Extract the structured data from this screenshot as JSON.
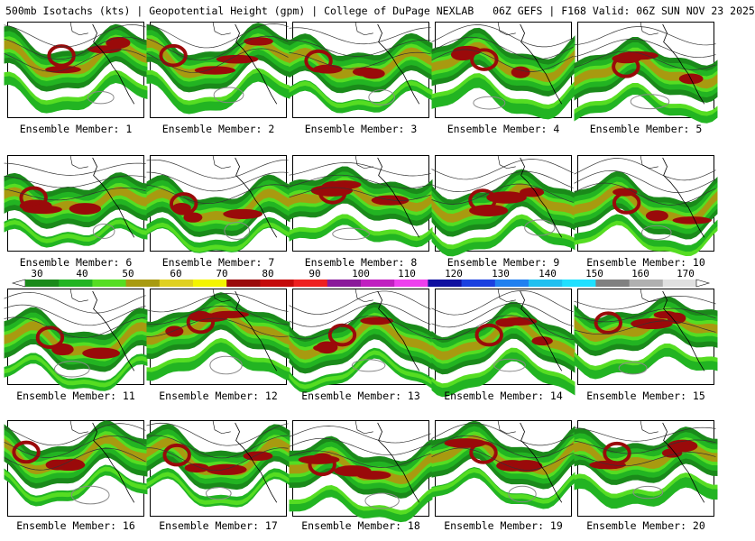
{
  "header": {
    "left": "500mb Isotachs (kts) | Geopotential Height (gpm) | College of DuPage NEXLAB",
    "right": "06Z GEFS | F168 Valid: 06Z SUN NOV 23 2025"
  },
  "colorbar": {
    "labels": [
      "30",
      "40",
      "50",
      "60",
      "70",
      "80",
      "90",
      "100",
      "110",
      "120",
      "130",
      "140",
      "150",
      "160",
      "170"
    ],
    "colors": [
      "#1a8a1a",
      "#22b422",
      "#55dd22",
      "#a89a10",
      "#e0d020",
      "#f4f400",
      "#9a0a0a",
      "#c40a0a",
      "#ee2020",
      "#8a1a9a",
      "#c020c0",
      "#ee40ee",
      "#1010a0",
      "#1a40e0",
      "#2080f0",
      "#20c0f0",
      "#20e0ff",
      "#808080",
      "#b0b0b0",
      "#e0e0e0"
    ]
  },
  "panels": [
    {
      "label": "Ensemble Member: 1"
    },
    {
      "label": "Ensemble Member: 2"
    },
    {
      "label": "Ensemble Member: 3"
    },
    {
      "label": "Ensemble Member: 4"
    },
    {
      "label": "Ensemble Member: 5"
    },
    {
      "label": "Ensemble Member: 6"
    },
    {
      "label": "Ensemble Member: 7"
    },
    {
      "label": "Ensemble Member: 8"
    },
    {
      "label": "Ensemble Member: 9"
    },
    {
      "label": "Ensemble Member: 10"
    },
    {
      "label": "Ensemble Member: 11"
    },
    {
      "label": "Ensemble Member: 12"
    },
    {
      "label": "Ensemble Member: 13"
    },
    {
      "label": "Ensemble Member: 14"
    },
    {
      "label": "Ensemble Member: 15"
    },
    {
      "label": "Ensemble Member: 16"
    },
    {
      "label": "Ensemble Member: 17"
    },
    {
      "label": "Ensemble Member: 18"
    },
    {
      "label": "Ensemble Member: 19"
    },
    {
      "label": "Ensemble Member: 20"
    }
  ]
}
